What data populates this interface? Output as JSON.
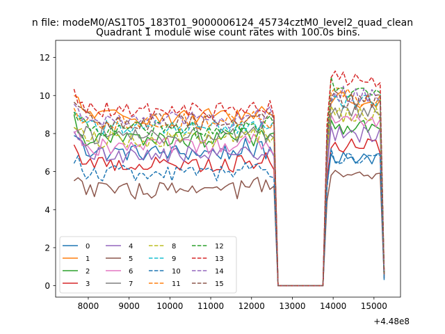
{
  "chart_data": {
    "type": "line",
    "suptitle": "n file: modeM0/AS1T05_183T01_9000006124_45734cztM0_level2_quad_clean",
    "title": "Quadrant 1 module wise count rates with 100.0s bins.",
    "xlabel": "",
    "ylabel": "",
    "x_offset_label": "+4.48e8",
    "xlim": [
      7200,
      15650
    ],
    "ylim": [
      -0.6,
      12.9
    ],
    "xticks": [
      8000,
      9000,
      10000,
      11000,
      12000,
      13000,
      14000,
      15000
    ],
    "yticks": [
      0,
      2,
      4,
      6,
      8,
      10,
      12
    ],
    "grid": false,
    "legend_position": "lower-left",
    "legend_columns": 4,
    "x_segments": [
      {
        "start": 7650,
        "end": 12550,
        "step": 100
      },
      {
        "start": 12650,
        "end": 13750,
        "step": 100
      },
      {
        "start": 13850,
        "end": 15250,
        "step": 100
      }
    ],
    "series": [
      {
        "name": "0",
        "color": "#1f77b4",
        "dash": "solid",
        "level1": 7.0,
        "level2": 6.8,
        "end": 0.3
      },
      {
        "name": "1",
        "color": "#ff7f0e",
        "dash": "solid",
        "level1": 8.9,
        "level2": 9.8,
        "end": 0.7
      },
      {
        "name": "2",
        "color": "#2ca02c",
        "dash": "solid",
        "level1": 7.7,
        "level2": 8.4,
        "end": 0.6
      },
      {
        "name": "3",
        "color": "#d62728",
        "dash": "solid",
        "level1": 6.4,
        "level2": 7.3,
        "end": 0.5
      },
      {
        "name": "4",
        "color": "#9467bd",
        "dash": "solid",
        "level1": 6.9,
        "level2": 7.9,
        "end": 0.5
      },
      {
        "name": "5",
        "color": "#8c564b",
        "dash": "solid",
        "level1": 5.0,
        "level2": 5.7,
        "end": 0.4
      },
      {
        "name": "6",
        "color": "#e377c2",
        "dash": "solid",
        "level1": 7.3,
        "level2": 8.7,
        "end": 0.6
      },
      {
        "name": "7",
        "color": "#7f7f7f",
        "dash": "solid",
        "level1": 7.9,
        "level2": 9.1,
        "end": 0.6
      },
      {
        "name": "8",
        "color": "#bcbd22",
        "dash": "dashed",
        "level1": 7.7,
        "level2": 9.0,
        "end": 0.6
      },
      {
        "name": "9",
        "color": "#17becf",
        "dash": "dashed",
        "level1": 8.3,
        "level2": 9.6,
        "end": 0.6
      },
      {
        "name": "10",
        "color": "#1f77b4",
        "dash": "dashed",
        "level1": 5.9,
        "level2": 6.6,
        "end": 0.4
      },
      {
        "name": "11",
        "color": "#ff7f0e",
        "dash": "dashed",
        "level1": 8.6,
        "level2": 9.9,
        "end": 0.7
      },
      {
        "name": "12",
        "color": "#2ca02c",
        "dash": "dashed",
        "level1": 8.2,
        "level2": 10.2,
        "end": 0.6
      },
      {
        "name": "13",
        "color": "#d62728",
        "dash": "dashed",
        "level1": 9.2,
        "level2": 10.9,
        "end": 0.7
      },
      {
        "name": "14",
        "color": "#9467bd",
        "dash": "dashed",
        "level1": 8.7,
        "level2": 10.0,
        "end": 0.6
      },
      {
        "name": "15",
        "color": "#8c564b",
        "dash": "dashed",
        "level1": 8.6,
        "level2": 9.7,
        "end": 0.6
      }
    ]
  }
}
